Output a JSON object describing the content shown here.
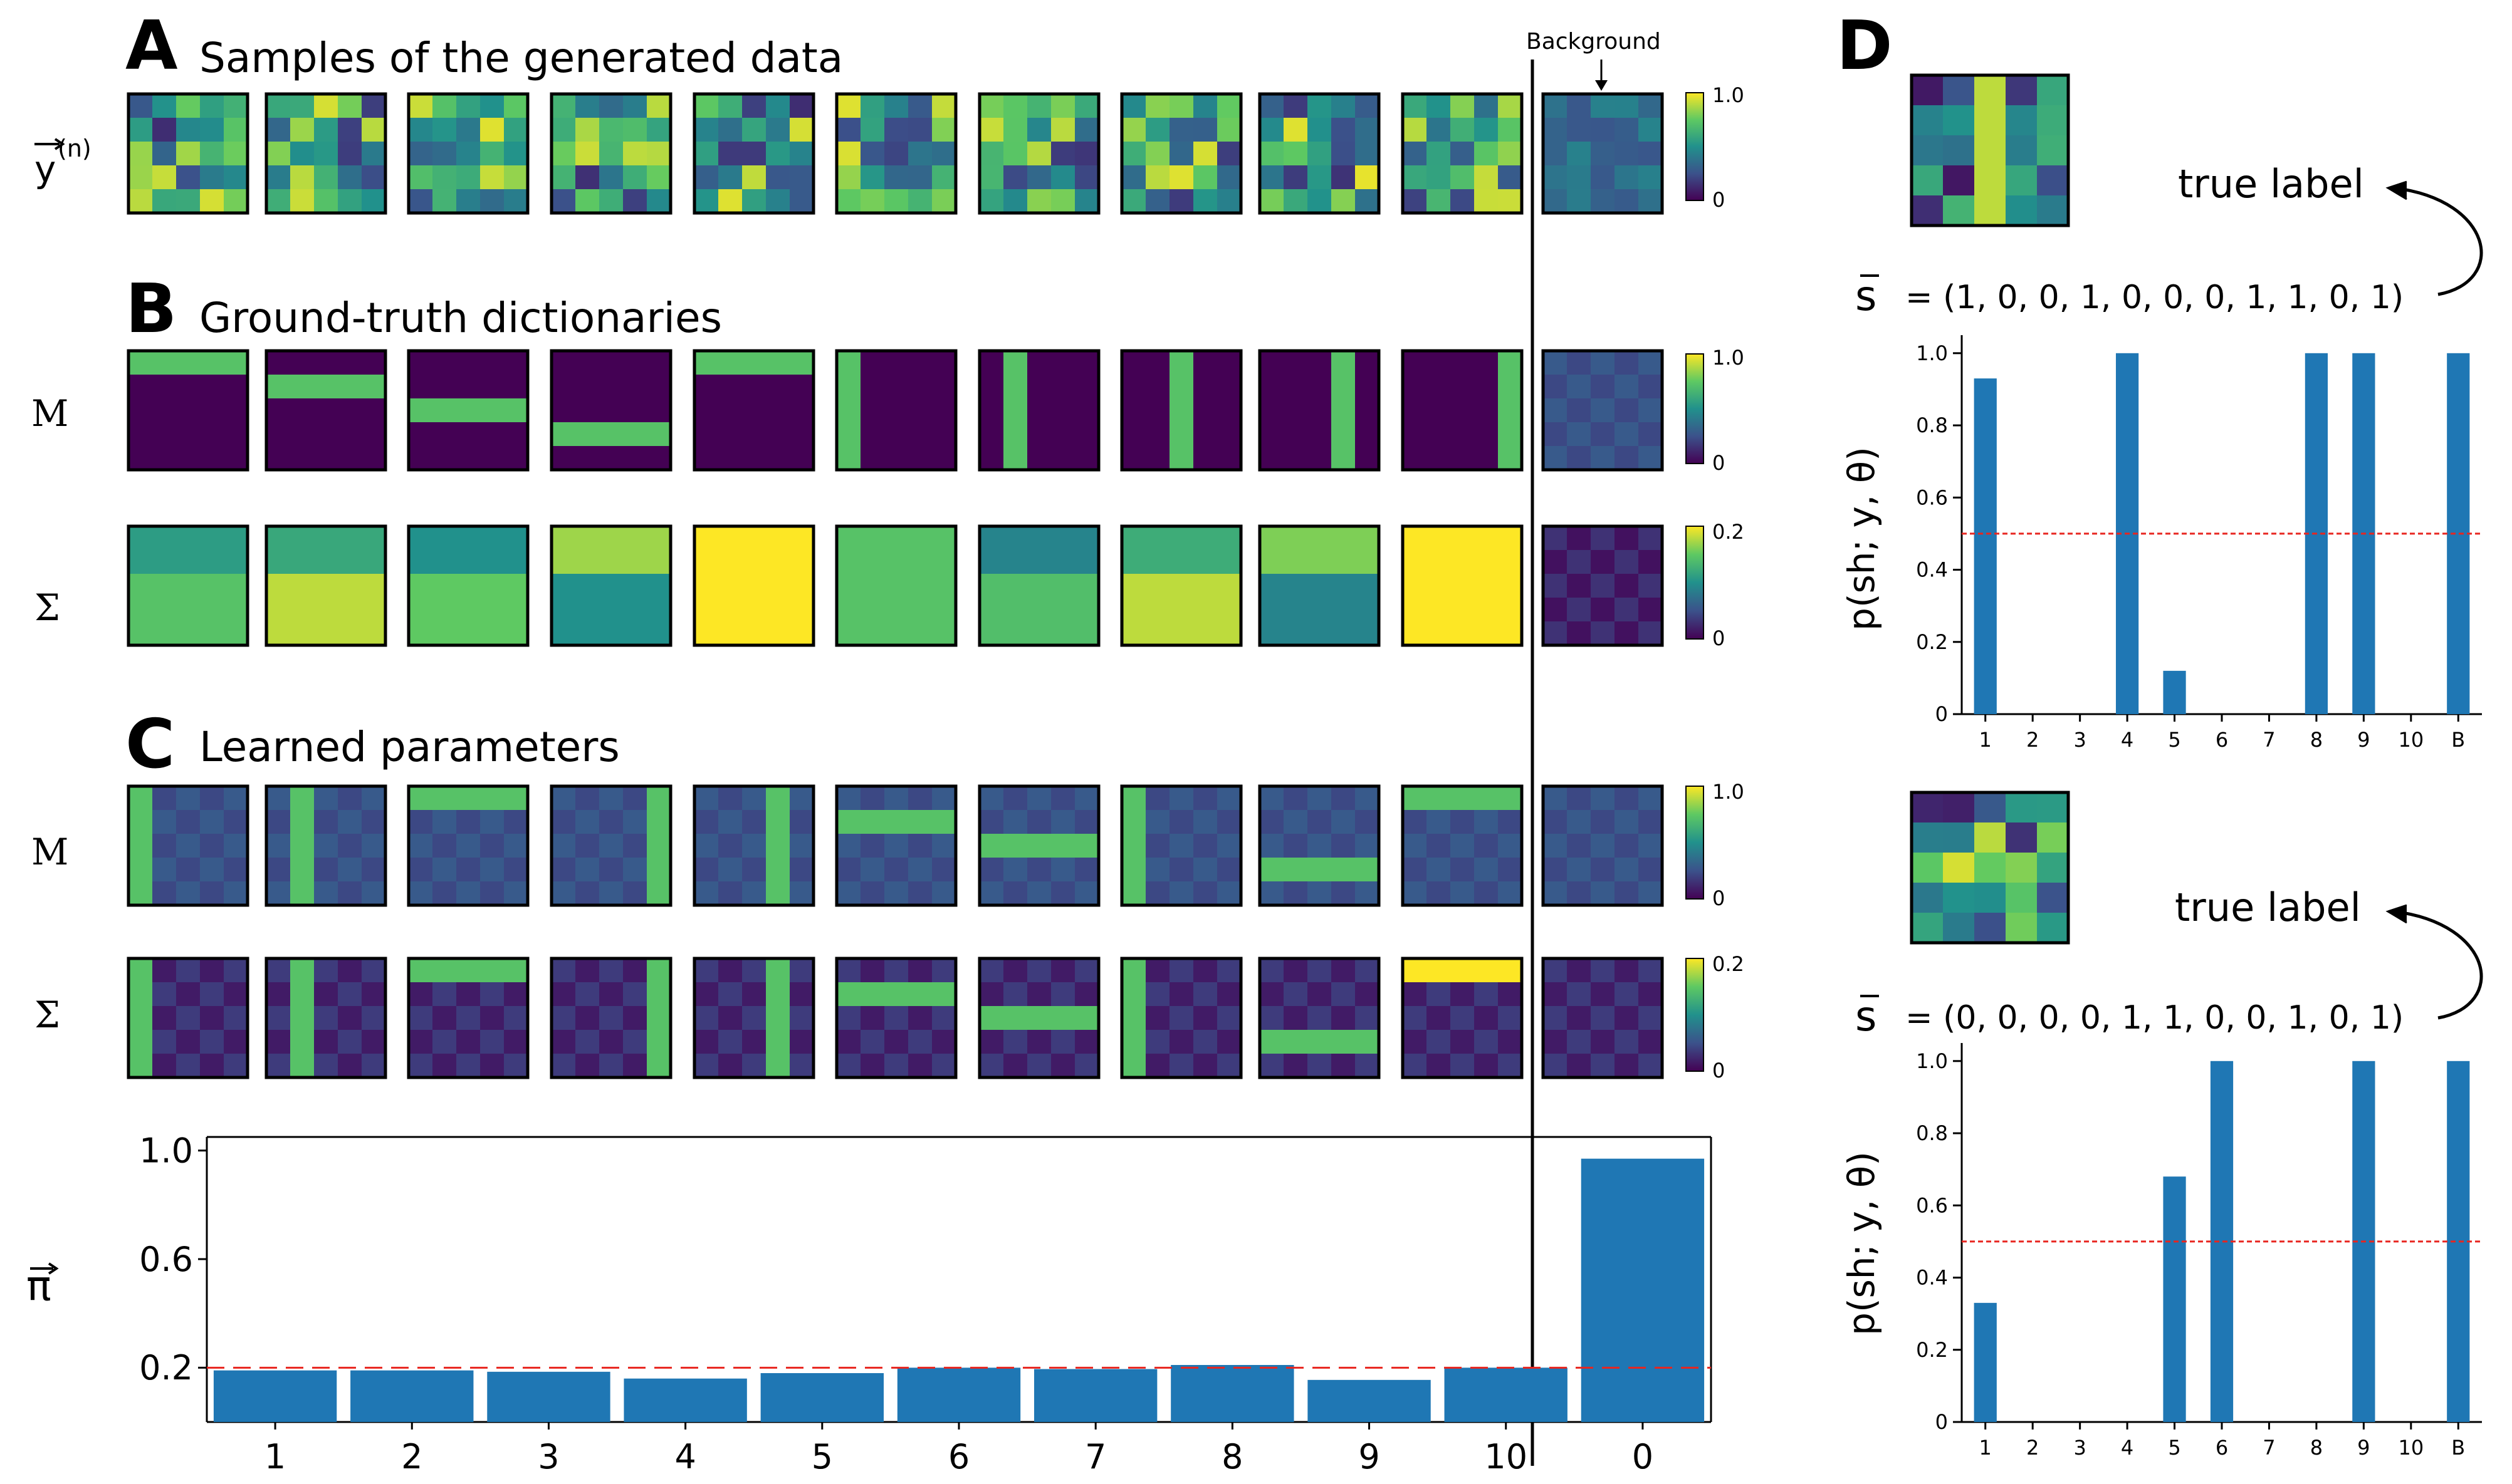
{
  "panel_A": {
    "letter": "A",
    "title": "Samples of the generated data",
    "row_label": "y",
    "row_label_sup": "(n)",
    "background_label": "Background",
    "colorbar_ticks": [
      "1.0",
      "0"
    ]
  },
  "panel_B": {
    "letter": "B",
    "title": "Ground-truth dictionaries",
    "row_M": "M",
    "row_Sigma": "Σ",
    "cb_M": [
      "1.0",
      "0"
    ],
    "cb_S": [
      "0.2",
      "0"
    ]
  },
  "panel_C": {
    "letter": "C",
    "title": "Learned parameters",
    "row_M": "M",
    "row_Sigma": "Σ",
    "cb_M": [
      "1.0",
      "0"
    ],
    "cb_S": [
      "0.2",
      "0"
    ],
    "pi_label": "π"
  },
  "panel_D": {
    "letter": "D",
    "true_label_1": "true label",
    "true_label_2": "true label",
    "s_label": "s",
    "s_vector_1": "= (1, 0, 0, 1, 0, 0, 0, 1, 1, 0, 1)",
    "s_vector_2": "= (0, 0, 0, 0, 1, 1, 0, 0, 1, 0, 1)",
    "ylabel": "p(sh; y, θ)"
  },
  "colors": {
    "bar": "#1f77b4",
    "threshold": "#e8251f",
    "viridis_low": "#440154",
    "viridis_high": "#fde725"
  },
  "chart_data": [
    {
      "type": "bar",
      "title": "",
      "xlabel": "",
      "ylabel": "π",
      "categories": [
        "1",
        "2",
        "3",
        "4",
        "5",
        "6",
        "7",
        "8",
        "9",
        "10",
        "0"
      ],
      "values": [
        0.19,
        0.19,
        0.185,
        0.16,
        0.18,
        0.2,
        0.195,
        0.21,
        0.155,
        0.2,
        0.97
      ],
      "yticks": [
        "0.2",
        "0.6",
        "1.0"
      ],
      "ylim": [
        0,
        1.05
      ],
      "threshold": 0.2
    },
    {
      "type": "bar",
      "title": "",
      "ylabel": "p(sh; y, θ)",
      "categories": [
        "1",
        "2",
        "3",
        "4",
        "5",
        "6",
        "7",
        "8",
        "9",
        "10",
        "B"
      ],
      "values": [
        0.93,
        0,
        0,
        1.0,
        0.12,
        0,
        0,
        1.0,
        1.0,
        0,
        1.0
      ],
      "yticks": [
        "0",
        "0.2",
        "0.4",
        "0.6",
        "0.8",
        "1.0"
      ],
      "ylim": [
        0,
        1.05
      ],
      "threshold": 0.5
    },
    {
      "type": "bar",
      "title": "",
      "ylabel": "p(sh; y, θ)",
      "categories": [
        "1",
        "2",
        "3",
        "4",
        "5",
        "6",
        "7",
        "8",
        "9",
        "10",
        "B"
      ],
      "values": [
        0.33,
        0,
        0,
        0,
        0.68,
        1.0,
        0,
        0,
        1.0,
        0,
        1.0
      ],
      "yticks": [
        "0",
        "0.2",
        "0.4",
        "0.6",
        "0.8",
        "1.0"
      ],
      "ylim": [
        0,
        1.05
      ],
      "threshold": 0.5
    }
  ]
}
